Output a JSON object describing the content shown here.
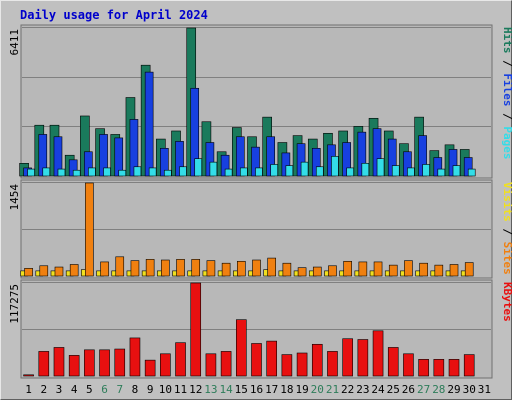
{
  "chart_data": [
    {
      "type": "bar",
      "title": "Daily usage for April 2024",
      "ymax_label": "6411",
      "ylim": [
        0,
        6411
      ],
      "categories": [
        "1",
        "2",
        "3",
        "4",
        "5",
        "6",
        "7",
        "8",
        "9",
        "10",
        "11",
        "12",
        "13",
        "14",
        "15",
        "16",
        "17",
        "18",
        "19",
        "20",
        "21",
        "22",
        "23",
        "24",
        "25",
        "26",
        "27",
        "28",
        "29",
        "30",
        "31"
      ],
      "series": [
        {
          "name": "Hits",
          "color": "#1a7a5c",
          "values": [
            550,
            2200,
            2200,
            900,
            2600,
            2050,
            1800,
            3400,
            4800,
            1600,
            1950,
            6411,
            2350,
            1050,
            2100,
            1700,
            2550,
            1450,
            1750,
            1600,
            1850,
            1950,
            2150,
            2500,
            1950,
            1400,
            2550,
            1100,
            1350,
            1150,
            0
          ]
        },
        {
          "name": "Files",
          "color": "#1740e0",
          "values": [
            350,
            1800,
            1700,
            700,
            1050,
            1800,
            1650,
            2450,
            4500,
            1200,
            1500,
            3800,
            1450,
            900,
            1700,
            1250,
            1700,
            1000,
            1400,
            1200,
            1350,
            1450,
            1900,
            2050,
            1600,
            1050,
            1750,
            800,
            1150,
            800,
            0
          ]
        },
        {
          "name": "Pages",
          "color": "#33dde8",
          "values": [
            300,
            350,
            300,
            250,
            350,
            350,
            250,
            400,
            350,
            250,
            400,
            750,
            600,
            300,
            350,
            350,
            500,
            450,
            600,
            400,
            850,
            350,
            550,
            750,
            450,
            350,
            500,
            300,
            450,
            300,
            0
          ]
        }
      ],
      "legend": [
        "Pages",
        "/",
        "Files",
        "/",
        "Hits"
      ]
    },
    {
      "type": "bar",
      "ymax_label": "1454",
      "ylim": [
        0,
        1454
      ],
      "series": [
        {
          "name": "Visits",
          "color": "#f0e020",
          "values": [
            80,
            80,
            80,
            80,
            100,
            80,
            80,
            80,
            80,
            80,
            80,
            80,
            80,
            80,
            80,
            80,
            100,
            80,
            80,
            80,
            80,
            80,
            80,
            80,
            80,
            80,
            80,
            80,
            80,
            80,
            0
          ]
        },
        {
          "name": "Sites",
          "color": "#f08010",
          "values": [
            120,
            160,
            140,
            180,
            1454,
            220,
            300,
            240,
            260,
            250,
            260,
            260,
            240,
            200,
            230,
            250,
            280,
            200,
            130,
            140,
            160,
            230,
            220,
            220,
            170,
            240,
            200,
            170,
            180,
            210,
            0
          ]
        }
      ],
      "legend": [
        "Sites",
        "/",
        "Visits"
      ]
    },
    {
      "type": "bar",
      "ymax_label": "117275",
      "ylim": [
        0,
        117275
      ],
      "series": [
        {
          "name": "KBytes",
          "color": "#e81010",
          "values": [
            1500,
            31000,
            36000,
            26000,
            33000,
            33000,
            34000,
            48000,
            20000,
            28000,
            42000,
            117275,
            28000,
            31000,
            71000,
            41000,
            44000,
            27000,
            29000,
            40000,
            31000,
            47000,
            46000,
            57000,
            36000,
            28000,
            21000,
            21000,
            21000,
            27000,
            0
          ]
        }
      ],
      "legend": [
        "KBytes"
      ]
    }
  ],
  "x_tick_colors": [
    "#000000",
    "#000000",
    "#000000",
    "#000000",
    "#000000",
    "#2e7d5a",
    "#2e7d5a",
    "#000000",
    "#000000",
    "#000000",
    "#000000",
    "#000000",
    "#2e7d5a",
    "#2e7d5a",
    "#000000",
    "#000000",
    "#000000",
    "#000000",
    "#000000",
    "#2e7d5a",
    "#2e7d5a",
    "#000000",
    "#000000",
    "#000000",
    "#000000",
    "#000000",
    "#2e7d5a",
    "#2e7d5a",
    "#000000",
    "#000000",
    "#000000"
  ],
  "colors": {
    "title": "#0000cc",
    "frame": "#c0c0c0",
    "panel": "#b8b8b8",
    "grid": "#808080",
    "text": "#000000",
    "slash": "#000000"
  }
}
